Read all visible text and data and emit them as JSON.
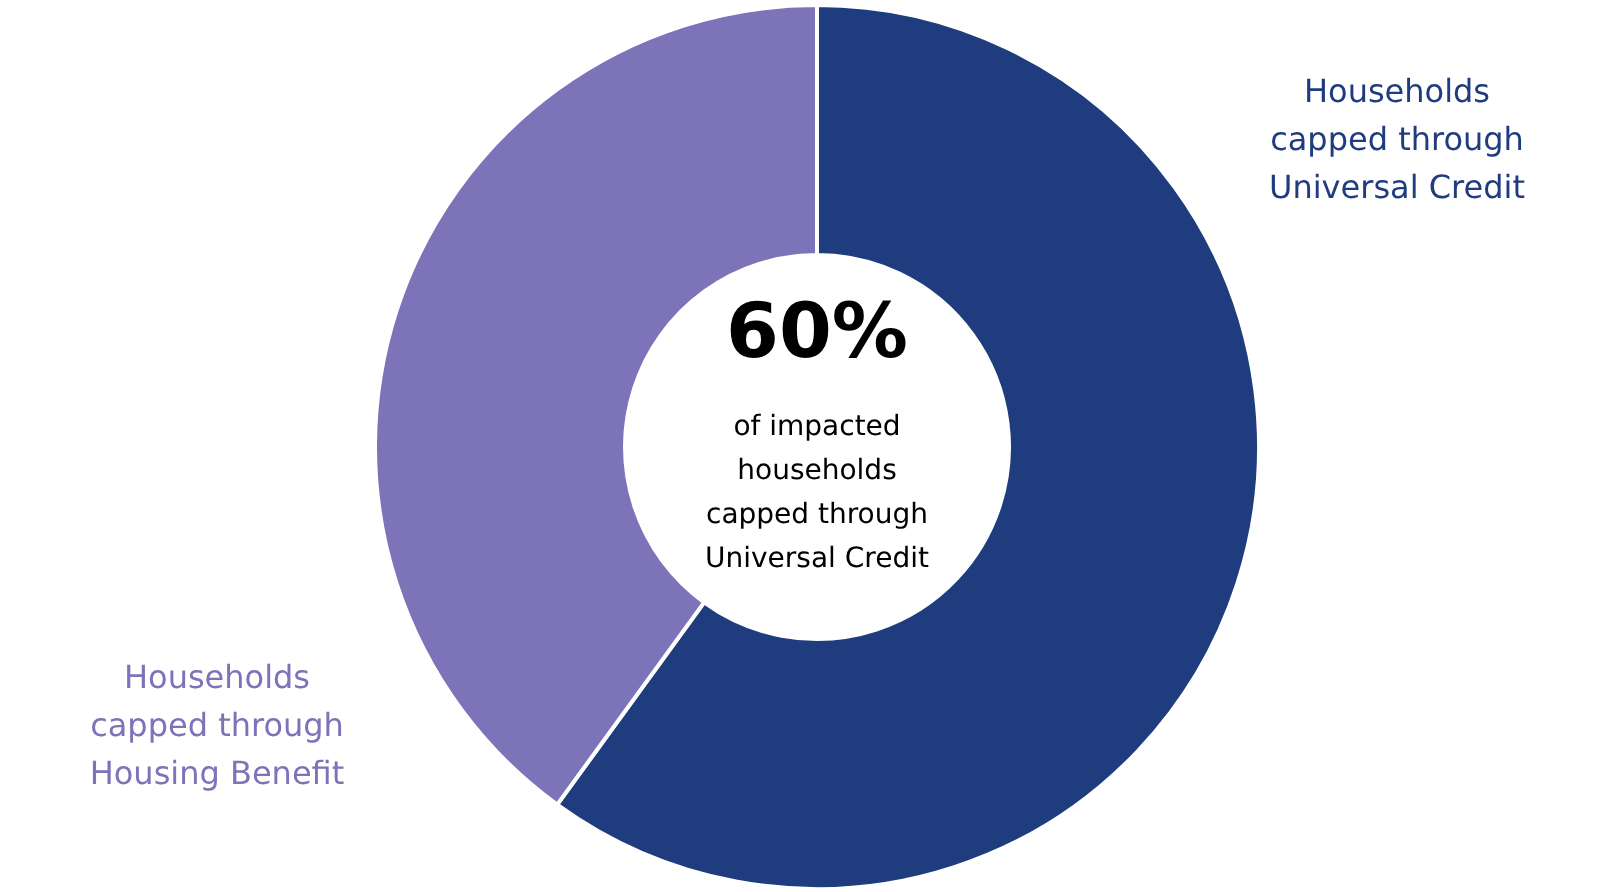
{
  "chart_data": {
    "type": "donut",
    "categories": [
      "Households capped through Universal Credit",
      "Households capped through Housing Benefit"
    ],
    "values": [
      60,
      40
    ],
    "colors": [
      "#1f3c7e",
      "#7c73b8"
    ],
    "annotations": [
      "60%",
      "of impacted households capped through Universal Credit"
    ]
  }
}
